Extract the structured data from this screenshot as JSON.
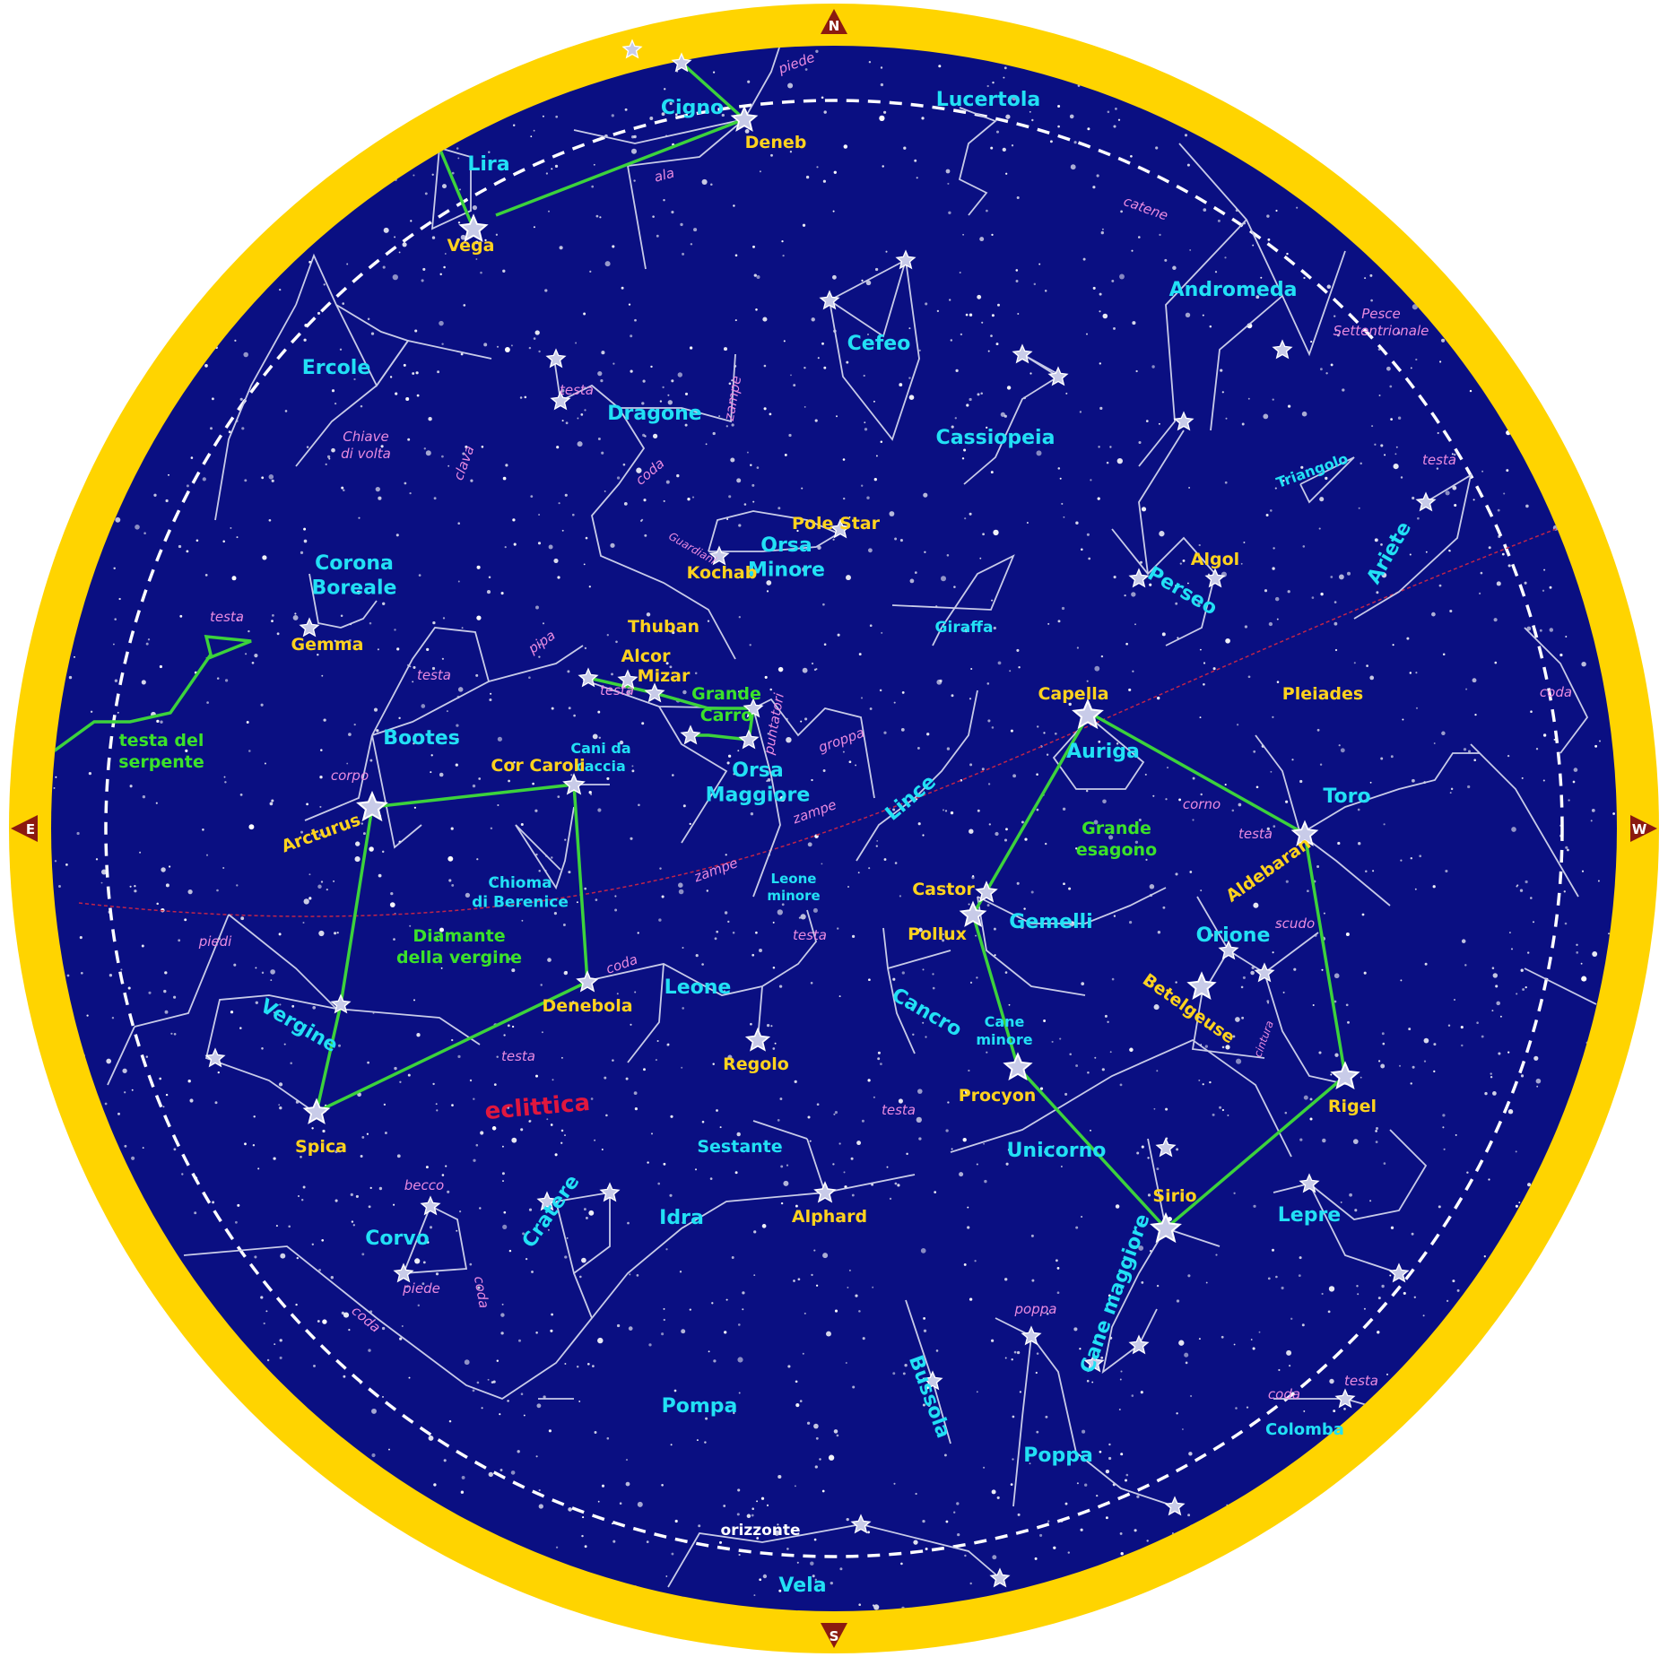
{
  "colors": {
    "ring": "#ffd400",
    "sky": "#0a0f82",
    "constellation_label": "#22e0f5",
    "star_label": "#ffd21e",
    "part_label": "#e98be0",
    "asterism_label": "#3be12a",
    "asterism_line": "#3cd23c",
    "constellation_line": "#c8cbe8",
    "ecliptic": "#e0173e",
    "compass": "#8b1a10"
  },
  "compass": {
    "north": "N",
    "south": "S",
    "east": "E",
    "west": "W"
  },
  "horizon_label": "orizzonte",
  "ecliptic_label": "eclittica",
  "constellations": [
    "Cigno",
    "Lucertola",
    "Lira",
    "Ercole",
    "Dragone",
    "Cefeo",
    "Cassiopeia",
    "Andromeda",
    "Pesce Settentrionale",
    "Triangolo",
    "Ariete",
    "Perseo",
    "Giraffa",
    "Orsa Minore",
    "Corona Boreale",
    "Bootes",
    "Orsa Maggiore",
    "Cani da caccia",
    "Lince",
    "Auriga",
    "Toro",
    "Chioma di Berenice",
    "Leone minore",
    "Gemelli",
    "Orione",
    "Vergine",
    "Leone",
    "Cancro",
    "Cane minore",
    "Sestante",
    "Unicorno",
    "Lepre",
    "Corvo",
    "Cratere",
    "Idra",
    "Cane maggiore",
    "Bussola",
    "Pompa",
    "Poppa",
    "Colomba",
    "Vela"
  ],
  "stars": [
    "Deneb",
    "Vega",
    "Pole Star",
    "Kochab",
    "Thuban",
    "Gemma",
    "Alcor",
    "Mizar",
    "Cor Caroli",
    "Arcturus",
    "Capella",
    "Pleiades",
    "Algol",
    "Aldebaran",
    "Castor",
    "Pollux",
    "Betelgeuse",
    "Rigel",
    "Denebola",
    "Regolo",
    "Spica",
    "Procyon",
    "Sirio",
    "Alphard"
  ],
  "parts": [
    "piede",
    "ala",
    "catene",
    "testa",
    "zampe",
    "Chiave di volta",
    "clava",
    "coda",
    "Guardiani",
    "testa",
    "testa",
    "pipa",
    "testa",
    "corpo",
    "testa",
    "groppa",
    "puntatori",
    "zampe",
    "zampe",
    "corno",
    "testa",
    "coda",
    "scudo",
    "cintura",
    "piedi",
    "coda",
    "testa",
    "testa",
    "testa",
    "becco",
    "piede",
    "coda",
    "coda",
    "poppa",
    "coda",
    "testa"
  ],
  "asterisms": [
    "testa del serpente",
    "Grande Carro",
    "Grande esagono",
    "Diamante della vergine"
  ]
}
